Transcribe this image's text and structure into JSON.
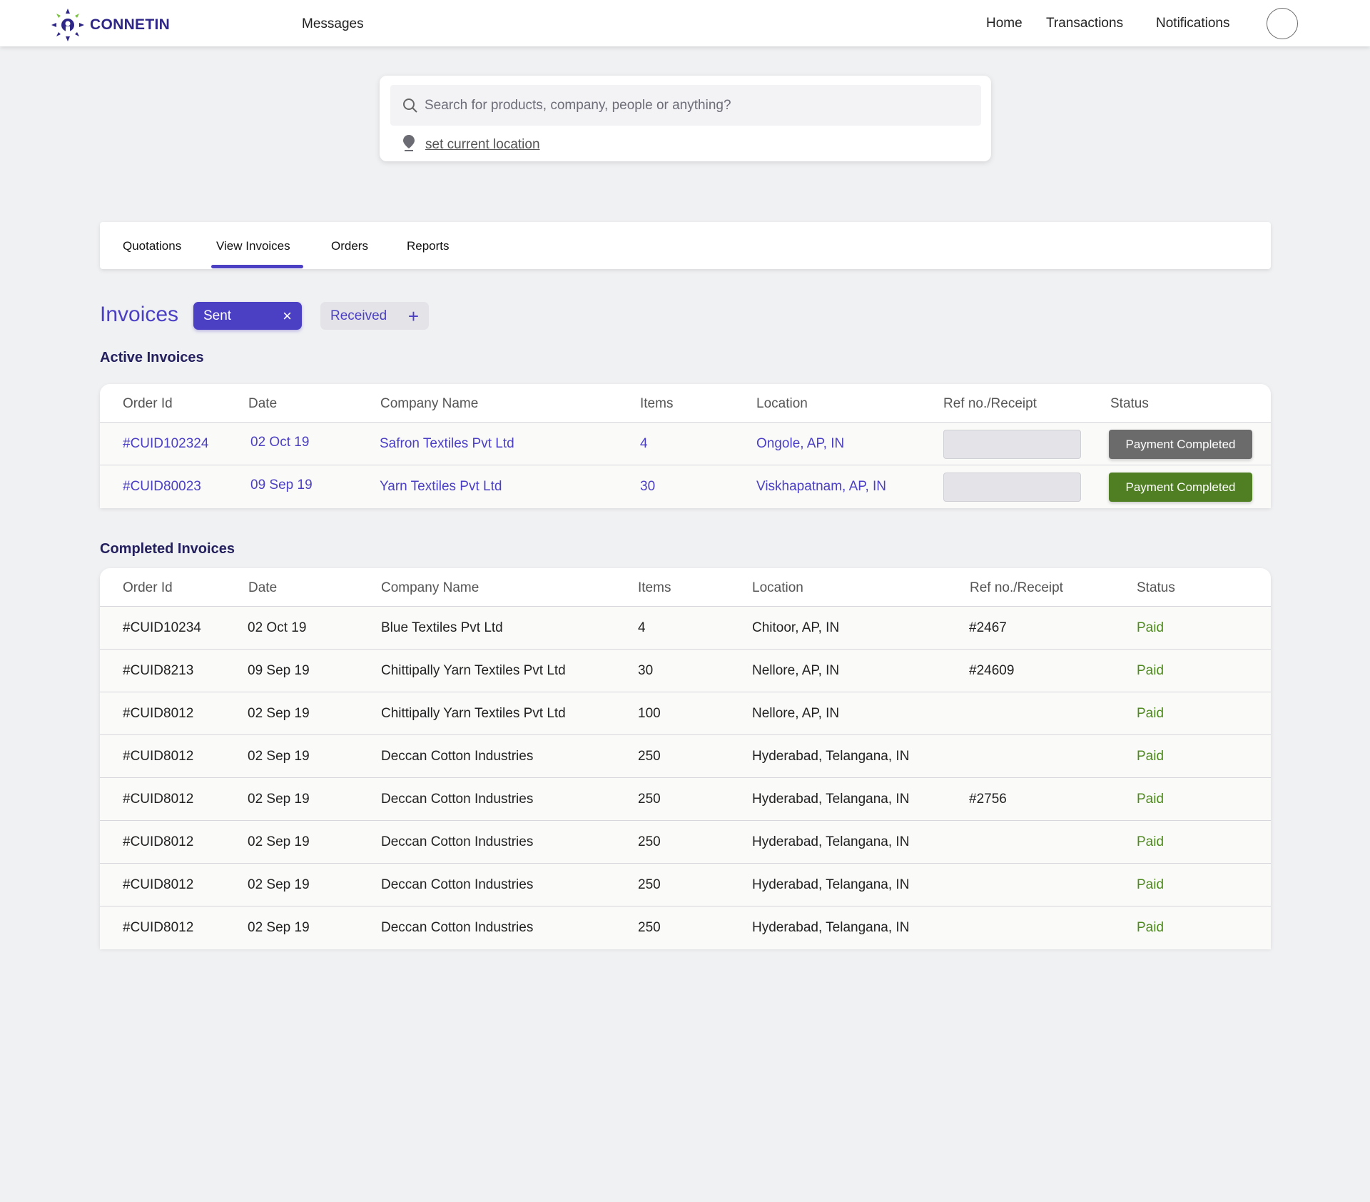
{
  "brand": {
    "name": "CONNETIN"
  },
  "nav": {
    "messages": "Messages",
    "home": "Home",
    "transactions": "Transactions",
    "notifications": "Notifications"
  },
  "search": {
    "placeholder": "Search for products, company, people or anything?",
    "value": "",
    "location_link": "set current location"
  },
  "tabs": [
    {
      "label": "Quotations",
      "active": false
    },
    {
      "label": "View Invoices",
      "active": true
    },
    {
      "label": "Orders",
      "active": false
    },
    {
      "label": "Reports",
      "active": false
    }
  ],
  "invoices": {
    "title": "Invoices",
    "filters": [
      {
        "label": "Sent",
        "selected": true
      },
      {
        "label": "Received",
        "selected": false
      }
    ]
  },
  "active_invoices": {
    "title": "Active Invoices",
    "columns": [
      "Order Id",
      "Date",
      "Company Name",
      "Items",
      "Location",
      "Ref no./Receipt",
      "Status"
    ],
    "rows": [
      {
        "order_id": "#CUID102324",
        "date": "02 Oct 19",
        "company": "Safron Textiles Pvt Ltd",
        "items": "4",
        "location": "Ongole, AP, IN",
        "ref": "",
        "status": "Payment Completed",
        "status_color": "#6b6b6b"
      },
      {
        "order_id": "#CUID80023",
        "date": "09 Sep 19",
        "company": "Yarn Textiles Pvt Ltd",
        "items": "30",
        "location": "Viskhapatnam, AP, IN",
        "ref": "",
        "status": "Payment Completed",
        "status_color": "#4f7f22"
      }
    ]
  },
  "completed_invoices": {
    "title": "Completed Invoices",
    "columns": [
      "Order Id",
      "Date",
      "Company Name",
      "Items",
      "Location",
      "Ref no./Receipt",
      "Status"
    ],
    "rows": [
      {
        "order_id": "#CUID10234",
        "date": "02 Oct 19",
        "company": "Blue Textiles Pvt Ltd",
        "items": "4",
        "location": "Chitoor, AP, IN",
        "ref": "#2467",
        "status": "Paid"
      },
      {
        "order_id": "#CUID8213",
        "date": "09 Sep 19",
        "company": "Chittipally Yarn Textiles Pvt Ltd",
        "items": "30",
        "location": "Nellore, AP, IN",
        "ref": "#24609",
        "status": "Paid"
      },
      {
        "order_id": "#CUID8012",
        "date": "02 Sep 19",
        "company": "Chittipally Yarn Textiles Pvt Ltd",
        "items": "100",
        "location": "Nellore, AP, IN",
        "ref": "",
        "status": "Paid"
      },
      {
        "order_id": "#CUID8012",
        "date": "02 Sep 19",
        "company": "Deccan Cotton Industries",
        "items": "250",
        "location": "Hyderabad, Telangana, IN",
        "ref": "",
        "status": "Paid"
      },
      {
        "order_id": "#CUID8012",
        "date": "02 Sep 19",
        "company": "Deccan Cotton Industries",
        "items": "250",
        "location": "Hyderabad, Telangana, IN",
        "ref": "#2756",
        "status": "Paid"
      },
      {
        "order_id": "#CUID8012",
        "date": "02 Sep 19",
        "company": "Deccan Cotton Industries",
        "items": "250",
        "location": "Hyderabad, Telangana, IN",
        "ref": "",
        "status": "Paid"
      },
      {
        "order_id": "#CUID8012",
        "date": "02 Sep 19",
        "company": "Deccan Cotton Industries",
        "items": "250",
        "location": "Hyderabad, Telangana, IN",
        "ref": "",
        "status": "Paid"
      },
      {
        "order_id": "#CUID8012",
        "date": "02 Sep 19",
        "company": "Deccan Cotton Industries",
        "items": "250",
        "location": "Hyderabad, Telangana, IN",
        "ref": "",
        "status": "Paid"
      }
    ]
  },
  "colors": {
    "accent": "#4b3fc4",
    "paid": "#4f8a1f",
    "brand": "#2f2787"
  },
  "icons": {
    "logo": "connetin-logo-icon",
    "search": "search-icon",
    "location": "location-pin-icon",
    "remove_filter": "close-icon",
    "add_filter": "plus-icon"
  }
}
